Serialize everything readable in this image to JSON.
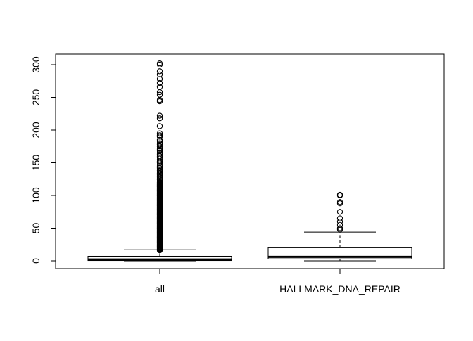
{
  "chart_data": {
    "type": "boxplot",
    "title": "",
    "xlabel": "",
    "ylabel": "",
    "ylim": [
      -10,
      312
    ],
    "y_ticks": [
      0,
      50,
      100,
      150,
      200,
      250,
      300
    ],
    "y_tick_labels": [
      "0",
      "50",
      "100",
      "150",
      "200",
      "250",
      "300"
    ],
    "grid": false,
    "categories": [
      "all",
      "HALLMARK_DNA_REPAIR"
    ],
    "boxes": [
      {
        "name": "all",
        "whisker_low": 0,
        "q1": 0.5,
        "median": 2,
        "q3": 7,
        "whisker_high": 17,
        "outliers": [
          16,
          17,
          18,
          19,
          20,
          21,
          22,
          23,
          24,
          25,
          26,
          27,
          28,
          29,
          30,
          31,
          32,
          33,
          34,
          35,
          36,
          37,
          38,
          39,
          40,
          41,
          42,
          43,
          44,
          45,
          46,
          47,
          48,
          49,
          50,
          51,
          52,
          53,
          54,
          55,
          56,
          57,
          58,
          59,
          60,
          61,
          62,
          63,
          64,
          65,
          66,
          67,
          68,
          69,
          70,
          71,
          72,
          73,
          74,
          75,
          76,
          77,
          78,
          79,
          80,
          81,
          82,
          83,
          84,
          85,
          86,
          87,
          88,
          89,
          90,
          91,
          92,
          93,
          94,
          95,
          96,
          97,
          98,
          99,
          100,
          101,
          102,
          103,
          104,
          105,
          106,
          107,
          108,
          109,
          110,
          111,
          112,
          113,
          114,
          115,
          116,
          117,
          118,
          119,
          120,
          122,
          124,
          126,
          128,
          130,
          132,
          134,
          136,
          138,
          140,
          142,
          145,
          147,
          150,
          152,
          155,
          158,
          160,
          163,
          165,
          168,
          170,
          172,
          175,
          178,
          180,
          183,
          185,
          190,
          192,
          195,
          206,
          218,
          222,
          244,
          246,
          254,
          258,
          266,
          272,
          278,
          285,
          290,
          300,
          302
        ]
      },
      {
        "name": "HALLMARK_DNA_REPAIR",
        "whisker_low": 0,
        "q1": 3,
        "median": 6,
        "q3": 20,
        "whisker_high": 44,
        "outliers": [
          48,
          50,
          55,
          60,
          65,
          75,
          88,
          90,
          100,
          101
        ]
      }
    ]
  }
}
